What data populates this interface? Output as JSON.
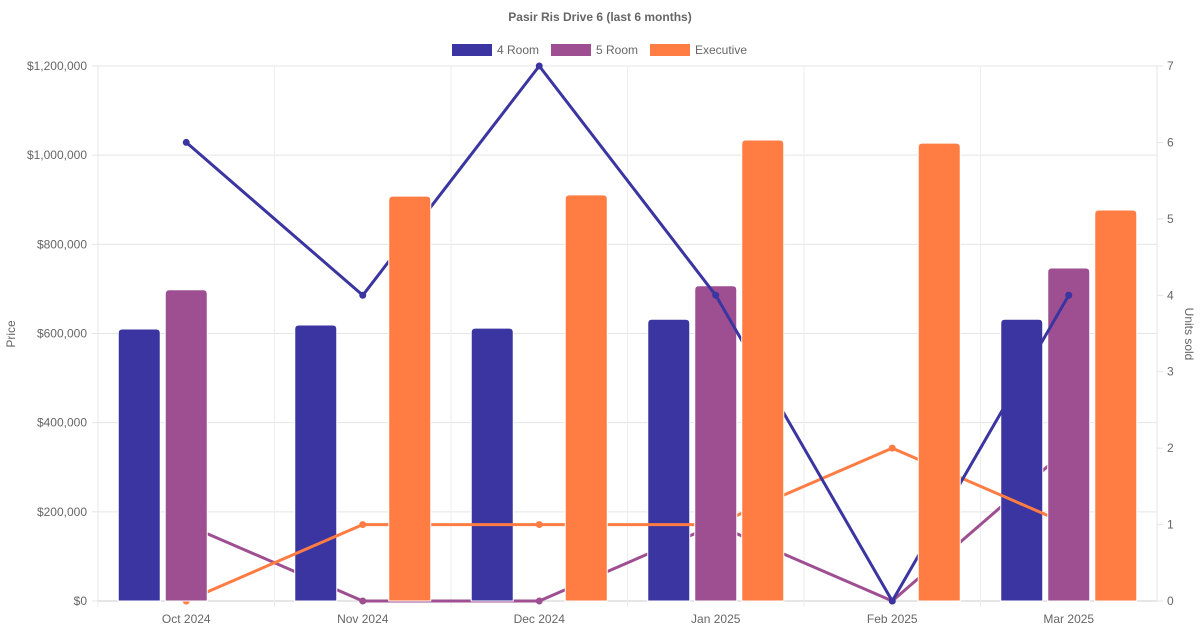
{
  "chart_data": {
    "type": "bar",
    "title": "Pasir Ris Drive 6 (last 6 months)",
    "categories": [
      "Oct 2024",
      "Nov 2024",
      "Dec 2024",
      "Jan 2025",
      "Feb 2025",
      "Mar 2025"
    ],
    "ylabel": "Price",
    "y2label": "Units sold",
    "ylim": [
      0,
      1200000
    ],
    "y2lim": [
      0,
      7
    ],
    "yticks": [
      "$0",
      "$200,000",
      "$400,000",
      "$600,000",
      "$800,000",
      "$1,000,000",
      "$1,200,000"
    ],
    "y2ticks": [
      "0",
      "1",
      "2",
      "3",
      "4",
      "5",
      "6",
      "7"
    ],
    "legend_position": "top",
    "grid": true,
    "series": [
      {
        "name": "4 Room",
        "color": "#3a35a0",
        "price": [
          610000,
          619000,
          612000,
          632000,
          null,
          632000
        ],
        "units": [
          6,
          4,
          7,
          4,
          0,
          4
        ]
      },
      {
        "name": "5 Room",
        "color": "#9e4f91",
        "price": [
          698000,
          null,
          null,
          707000,
          null,
          747000
        ],
        "units": [
          1,
          0,
          0,
          1,
          0,
          2
        ]
      },
      {
        "name": "Executive",
        "color": "#ff7c43",
        "price": [
          null,
          908000,
          911000,
          1034000,
          1027000,
          877000
        ],
        "units": [
          0,
          1,
          1,
          1,
          2,
          1
        ]
      }
    ]
  }
}
